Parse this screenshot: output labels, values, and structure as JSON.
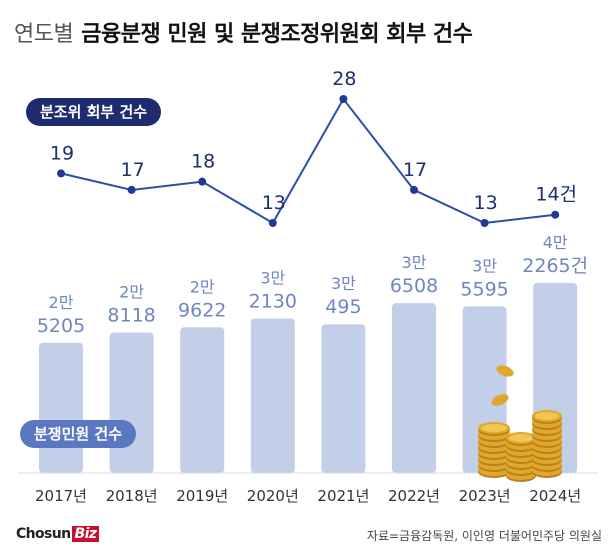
{
  "title": {
    "light": "연도별",
    "bold": "금융분쟁 민원 및 분쟁조정위원회 회부 건수"
  },
  "legend": {
    "line_label": "분조위 회부 건수",
    "bar_label": "분쟁민원 건수"
  },
  "footer": {
    "brand_main": "Chosun",
    "brand_accent": "Biz",
    "source": "자료=금융감독원, 이인영 더불어민주당 의원실"
  },
  "colors": {
    "line": "#2b4ea8",
    "bar": "#c3cfe9",
    "bar_label": "#6f86bf",
    "line_label": "#1f2f6e",
    "axis_label": "#333333",
    "coin": "#e0a82a"
  },
  "chart_data": [
    {
      "type": "line",
      "title": "분조위 회부 건수",
      "categories": [
        "2017년",
        "2018년",
        "2019년",
        "2020년",
        "2021년",
        "2022년",
        "2023년",
        "2024년"
      ],
      "values": [
        19,
        17,
        18,
        13,
        28,
        17,
        13,
        14
      ],
      "value_labels": [
        "19",
        "17",
        "18",
        "13",
        "28",
        "17",
        "13",
        "14건"
      ],
      "ylim": [
        13,
        28
      ]
    },
    {
      "type": "bar",
      "title": "분쟁민원 건수",
      "categories": [
        "2017년",
        "2018년",
        "2019년",
        "2020년",
        "2021년",
        "2022년",
        "2023년",
        "2024년"
      ],
      "values": [
        25205,
        28118,
        29622,
        32130,
        30495,
        36508,
        35595,
        42265
      ],
      "value_labels_top": [
        "2만",
        "2만",
        "2만",
        "3만",
        "3만",
        "3만",
        "3만",
        "4만"
      ],
      "value_labels_bottom": [
        "5205",
        "8118",
        "9622",
        "2130",
        "495",
        "6508",
        "5595",
        "2265건"
      ],
      "ylim": [
        20000,
        42265
      ]
    }
  ]
}
